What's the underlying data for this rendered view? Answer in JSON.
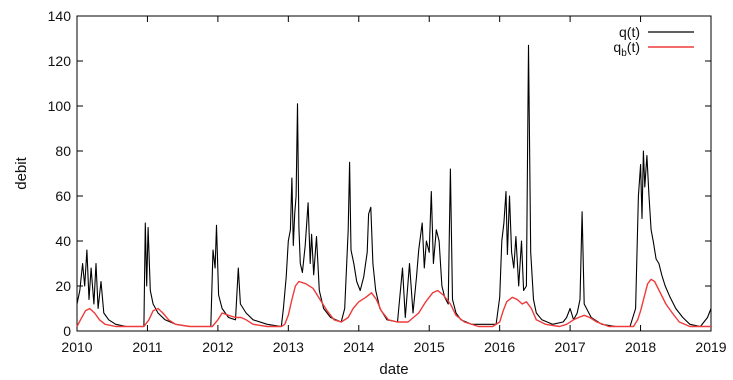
{
  "chart_data": {
    "type": "line",
    "xlabel": "date",
    "ylabel": "debit",
    "xlim": [
      2010,
      2019
    ],
    "ylim": [
      0,
      140
    ],
    "x_ticks": [
      "2010",
      "2011",
      "2012",
      "2013",
      "2014",
      "2015",
      "2016",
      "2017",
      "2018",
      "2019"
    ],
    "y_ticks": [
      "0",
      "20",
      "40",
      "60",
      "80",
      "100",
      "120",
      "140"
    ],
    "grid": false,
    "legend_position": "top-right",
    "series": [
      {
        "name": "q(t)",
        "legend_main": "q(t)",
        "color": "#000000",
        "points": [
          [
            2010.0,
            12
          ],
          [
            2010.04,
            18
          ],
          [
            2010.08,
            30
          ],
          [
            2010.11,
            20
          ],
          [
            2010.14,
            36
          ],
          [
            2010.17,
            14
          ],
          [
            2010.2,
            28
          ],
          [
            2010.24,
            12
          ],
          [
            2010.27,
            30
          ],
          [
            2010.3,
            10
          ],
          [
            2010.34,
            22
          ],
          [
            2010.38,
            8
          ],
          [
            2010.45,
            5
          ],
          [
            2010.55,
            3
          ],
          [
            2010.7,
            2
          ],
          [
            2010.85,
            2
          ],
          [
            2010.95,
            2
          ],
          [
            2010.97,
            48
          ],
          [
            2010.99,
            20
          ],
          [
            2011.01,
            46
          ],
          [
            2011.04,
            18
          ],
          [
            2011.08,
            12
          ],
          [
            2011.15,
            8
          ],
          [
            2011.25,
            5
          ],
          [
            2011.4,
            3
          ],
          [
            2011.6,
            2
          ],
          [
            2011.8,
            2
          ],
          [
            2011.9,
            2
          ],
          [
            2011.93,
            36
          ],
          [
            2011.96,
            28
          ],
          [
            2011.98,
            47
          ],
          [
            2012.01,
            16
          ],
          [
            2012.06,
            10
          ],
          [
            2012.15,
            6
          ],
          [
            2012.25,
            5
          ],
          [
            2012.29,
            28
          ],
          [
            2012.32,
            12
          ],
          [
            2012.4,
            8
          ],
          [
            2012.5,
            5
          ],
          [
            2012.7,
            3
          ],
          [
            2012.9,
            2
          ],
          [
            2012.93,
            10
          ],
          [
            2012.97,
            24
          ],
          [
            2013.0,
            40
          ],
          [
            2013.03,
            45
          ],
          [
            2013.05,
            68
          ],
          [
            2013.07,
            38
          ],
          [
            2013.09,
            52
          ],
          [
            2013.11,
            60
          ],
          [
            2013.13,
            101
          ],
          [
            2013.15,
            46
          ],
          [
            2013.17,
            30
          ],
          [
            2013.2,
            26
          ],
          [
            2013.24,
            38
          ],
          [
            2013.28,
            57
          ],
          [
            2013.31,
            30
          ],
          [
            2013.33,
            43
          ],
          [
            2013.36,
            25
          ],
          [
            2013.4,
            42
          ],
          [
            2013.44,
            18
          ],
          [
            2013.5,
            10
          ],
          [
            2013.6,
            6
          ],
          [
            2013.75,
            4
          ],
          [
            2013.8,
            10
          ],
          [
            2013.85,
            45
          ],
          [
            2013.87,
            75
          ],
          [
            2013.89,
            36
          ],
          [
            2013.93,
            30
          ],
          [
            2013.97,
            22
          ],
          [
            2014.02,
            18
          ],
          [
            2014.07,
            24
          ],
          [
            2014.12,
            35
          ],
          [
            2014.14,
            52
          ],
          [
            2014.17,
            55
          ],
          [
            2014.2,
            30
          ],
          [
            2014.24,
            18
          ],
          [
            2014.3,
            10
          ],
          [
            2014.4,
            5
          ],
          [
            2014.55,
            4
          ],
          [
            2014.62,
            28
          ],
          [
            2014.66,
            6
          ],
          [
            2014.72,
            30
          ],
          [
            2014.77,
            8
          ],
          [
            2014.82,
            24
          ],
          [
            2014.85,
            36
          ],
          [
            2014.9,
            48
          ],
          [
            2014.93,
            28
          ],
          [
            2014.96,
            40
          ],
          [
            2015.0,
            35
          ],
          [
            2015.03,
            62
          ],
          [
            2015.06,
            30
          ],
          [
            2015.1,
            45
          ],
          [
            2015.14,
            40
          ],
          [
            2015.18,
            20
          ],
          [
            2015.22,
            15
          ],
          [
            2015.27,
            12
          ],
          [
            2015.3,
            72
          ],
          [
            2015.33,
            14
          ],
          [
            2015.38,
            8
          ],
          [
            2015.45,
            5
          ],
          [
            2015.6,
            3
          ],
          [
            2015.8,
            3
          ],
          [
            2015.95,
            3
          ],
          [
            2016.0,
            15
          ],
          [
            2016.03,
            40
          ],
          [
            2016.06,
            48
          ],
          [
            2016.09,
            62
          ],
          [
            2016.11,
            34
          ],
          [
            2016.14,
            60
          ],
          [
            2016.17,
            35
          ],
          [
            2016.2,
            28
          ],
          [
            2016.23,
            42
          ],
          [
            2016.27,
            20
          ],
          [
            2016.31,
            40
          ],
          [
            2016.34,
            18
          ],
          [
            2016.38,
            20
          ],
          [
            2016.41,
            127
          ],
          [
            2016.44,
            35
          ],
          [
            2016.48,
            14
          ],
          [
            2016.52,
            8
          ],
          [
            2016.6,
            5
          ],
          [
            2016.75,
            3
          ],
          [
            2016.9,
            4
          ],
          [
            2016.95,
            6
          ],
          [
            2017.0,
            10
          ],
          [
            2017.05,
            5
          ],
          [
            2017.1,
            8
          ],
          [
            2017.14,
            14
          ],
          [
            2017.17,
            53
          ],
          [
            2017.2,
            12
          ],
          [
            2017.3,
            6
          ],
          [
            2017.45,
            3
          ],
          [
            2017.65,
            2
          ],
          [
            2017.85,
            2
          ],
          [
            2017.93,
            10
          ],
          [
            2017.97,
            60
          ],
          [
            2018.0,
            74
          ],
          [
            2018.02,
            50
          ],
          [
            2018.04,
            80
          ],
          [
            2018.06,
            64
          ],
          [
            2018.09,
            78
          ],
          [
            2018.12,
            60
          ],
          [
            2018.15,
            45
          ],
          [
            2018.18,
            40
          ],
          [
            2018.22,
            32
          ],
          [
            2018.26,
            30
          ],
          [
            2018.3,
            25
          ],
          [
            2018.35,
            20
          ],
          [
            2018.42,
            15
          ],
          [
            2018.5,
            10
          ],
          [
            2018.6,
            6
          ],
          [
            2018.7,
            3
          ],
          [
            2018.85,
            2
          ],
          [
            2018.95,
            6
          ],
          [
            2019.0,
            10
          ]
        ]
      },
      {
        "name": "qb(t)",
        "legend_main": "q",
        "legend_sub": "b",
        "legend_tail": "(t)",
        "color": "#ee3b3b",
        "points": [
          [
            2010.0,
            2
          ],
          [
            2010.05,
            5
          ],
          [
            2010.12,
            9
          ],
          [
            2010.18,
            10
          ],
          [
            2010.25,
            8
          ],
          [
            2010.32,
            5
          ],
          [
            2010.4,
            3
          ],
          [
            2010.55,
            2
          ],
          [
            2010.8,
            2
          ],
          [
            2010.95,
            2
          ],
          [
            2011.02,
            5
          ],
          [
            2011.08,
            9
          ],
          [
            2011.15,
            10
          ],
          [
            2011.22,
            8
          ],
          [
            2011.3,
            5
          ],
          [
            2011.4,
            3
          ],
          [
            2011.6,
            2
          ],
          [
            2011.85,
            2
          ],
          [
            2011.92,
            2
          ],
          [
            2012.0,
            5
          ],
          [
            2012.06,
            8
          ],
          [
            2012.15,
            7
          ],
          [
            2012.25,
            6
          ],
          [
            2012.33,
            6
          ],
          [
            2012.4,
            5
          ],
          [
            2012.5,
            3
          ],
          [
            2012.7,
            2
          ],
          [
            2012.9,
            2
          ],
          [
            2012.95,
            3
          ],
          [
            2013.0,
            7
          ],
          [
            2013.05,
            14
          ],
          [
            2013.1,
            20
          ],
          [
            2013.15,
            22
          ],
          [
            2013.25,
            21
          ],
          [
            2013.35,
            19
          ],
          [
            2013.45,
            14
          ],
          [
            2013.55,
            9
          ],
          [
            2013.65,
            5
          ],
          [
            2013.75,
            4
          ],
          [
            2013.85,
            6
          ],
          [
            2013.92,
            10
          ],
          [
            2014.0,
            13
          ],
          [
            2014.1,
            15
          ],
          [
            2014.18,
            17
          ],
          [
            2014.25,
            14
          ],
          [
            2014.32,
            9
          ],
          [
            2014.42,
            5
          ],
          [
            2014.55,
            4
          ],
          [
            2014.7,
            4
          ],
          [
            2014.85,
            8
          ],
          [
            2014.95,
            13
          ],
          [
            2015.05,
            17
          ],
          [
            2015.12,
            18
          ],
          [
            2015.2,
            16
          ],
          [
            2015.3,
            12
          ],
          [
            2015.38,
            7
          ],
          [
            2015.5,
            4
          ],
          [
            2015.7,
            2
          ],
          [
            2015.9,
            2
          ],
          [
            2016.0,
            4
          ],
          [
            2016.05,
            9
          ],
          [
            2016.1,
            13
          ],
          [
            2016.18,
            15
          ],
          [
            2016.25,
            14
          ],
          [
            2016.32,
            12
          ],
          [
            2016.38,
            13
          ],
          [
            2016.45,
            10
          ],
          [
            2016.52,
            5
          ],
          [
            2016.65,
            3
          ],
          [
            2016.85,
            2
          ],
          [
            2016.95,
            3
          ],
          [
            2017.05,
            5
          ],
          [
            2017.12,
            6
          ],
          [
            2017.2,
            7
          ],
          [
            2017.28,
            6
          ],
          [
            2017.38,
            4
          ],
          [
            2017.55,
            2
          ],
          [
            2017.8,
            2
          ],
          [
            2017.9,
            2
          ],
          [
            2017.96,
            5
          ],
          [
            2018.0,
            9
          ],
          [
            2018.05,
            15
          ],
          [
            2018.1,
            21
          ],
          [
            2018.15,
            23
          ],
          [
            2018.2,
            22
          ],
          [
            2018.28,
            17
          ],
          [
            2018.36,
            12
          ],
          [
            2018.45,
            8
          ],
          [
            2018.55,
            4
          ],
          [
            2018.7,
            2
          ],
          [
            2018.9,
            2
          ],
          [
            2019.0,
            2
          ]
        ]
      }
    ]
  }
}
